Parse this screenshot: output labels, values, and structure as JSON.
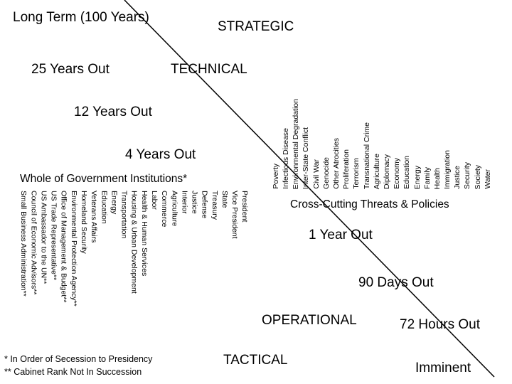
{
  "labels": {
    "long_term": "Long Term (100 Years)",
    "strategic": "STRATEGIC",
    "y25": "25 Years Out",
    "technical": "TECHNICAL",
    "y12": "12 Years Out",
    "y4": "4 Years Out",
    "whole_gov": "Whole of Government Institutions*",
    "cross_cutting": "Cross-Cutting Threats & Policies",
    "y1": "1 Year Out",
    "d90": "90 Days Out",
    "operational": "OPERATIONAL",
    "h72": "72 Hours Out",
    "tactical": "TACTICAL",
    "imminent": "Imminent"
  },
  "threats": [
    "Poverty",
    "Infectious Disease",
    "Environmental Degradation",
    "Inter-State Conflict",
    "Civil War",
    "Genocide",
    "Other Atrocities",
    "Proliferation",
    "Terrorism",
    "Transnational Crime",
    "Agriculture",
    "Diplomacy",
    "Economy",
    "Education",
    "Energy",
    "Family",
    "Health",
    "Immigration",
    "Justice",
    "Security",
    "Society",
    "Water"
  ],
  "institutions": [
    "President",
    "Vice President",
    "State",
    "Treasury",
    "Defense",
    "Justice",
    "Interior",
    "Agriculture",
    "Commerce",
    "Labor",
    "Health & Human Services",
    "Housing & Urban Development",
    "Transportation",
    "Energy",
    "Education",
    "Veterans Affairs",
    "Homeland Security",
    "Environmental Protection Agency**",
    "Office of Management & Budget**",
    "US Trade Representative**",
    "US Ambassador to the UN**",
    "Council of Economic Advisors**",
    "Small Business Administration**"
  ],
  "footnotes": {
    "note1": "* In Order of Secession to Presidency",
    "note2": "** Cabinet Rank Not In Succession"
  }
}
